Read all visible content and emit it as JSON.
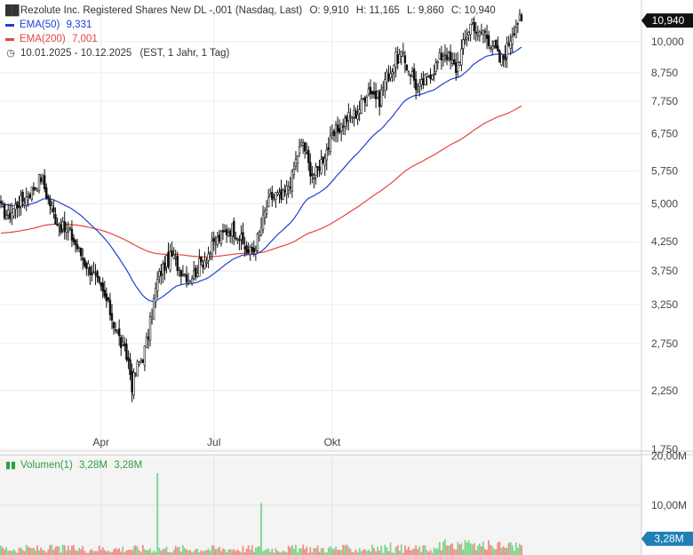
{
  "header": {
    "title": "Rezolute Inc. Registered Shares New DL -,001 (Nasdaq, Last)",
    "ohlc": {
      "o_label": "O:",
      "o": "9,910",
      "h_label": "H:",
      "h": "11,165",
      "l_label": "L:",
      "l": "9,860",
      "c_label": "C:",
      "c": "10,940"
    },
    "ema50": {
      "label": "EMA(50)",
      "value": "9,331",
      "color": "#1f3fd6"
    },
    "ema200": {
      "label": "EMA(200)",
      "value": "7,001",
      "color": "#e5453c"
    },
    "range": {
      "dates": "10.01.2025 - 10.12.2025",
      "info": "(EST, 1 Jahr, 1 Tag)"
    }
  },
  "volume_legend": {
    "label": "Volumen(1)",
    "v1": "3,28M",
    "v2": "3,28M"
  },
  "chart_data": {
    "type": "candlestick",
    "yscale": "log",
    "ylim": [
      1.75,
      11.5
    ],
    "ytick_labels": [
      "10,000",
      "8,750",
      "7,750",
      "6,750",
      "5,750",
      "5,000",
      "4,250",
      "3,750",
      "3,250",
      "2,750",
      "2,250",
      "1,750"
    ],
    "ytick_values": [
      10.0,
      8.75,
      7.75,
      6.75,
      5.75,
      5.0,
      4.25,
      3.75,
      3.25,
      2.75,
      2.25,
      1.75
    ],
    "xtick_labels": [
      "Apr",
      "Jul",
      "Okt"
    ],
    "last_price_label": "10,940",
    "last_price": 10.94,
    "price_anchors": [
      [
        0,
        4.9
      ],
      [
        4,
        4.75
      ],
      [
        9,
        5.0
      ],
      [
        13,
        5.1
      ],
      [
        17,
        5.3
      ],
      [
        22,
        5.6
      ],
      [
        26,
        5.1
      ],
      [
        30,
        4.7
      ],
      [
        34,
        4.5
      ],
      [
        38,
        4.4
      ],
      [
        42,
        4.15
      ],
      [
        46,
        3.9
      ],
      [
        50,
        3.75
      ],
      [
        54,
        3.5
      ],
      [
        58,
        3.3
      ],
      [
        62,
        3.0
      ],
      [
        66,
        2.75
      ],
      [
        70,
        2.55
      ],
      [
        72,
        2.3
      ],
      [
        75,
        2.5
      ],
      [
        78,
        2.6
      ],
      [
        81,
        2.85
      ],
      [
        84,
        3.3
      ],
      [
        86,
        3.6
      ],
      [
        88,
        3.75
      ],
      [
        91,
        3.9
      ],
      [
        94,
        4.0
      ],
      [
        97,
        3.85
      ],
      [
        100,
        3.75
      ],
      [
        103,
        3.65
      ],
      [
        106,
        3.7
      ],
      [
        109,
        3.85
      ],
      [
        112,
        3.95
      ],
      [
        115,
        4.1
      ],
      [
        118,
        4.25
      ],
      [
        121,
        4.35
      ],
      [
        124,
        4.45
      ],
      [
        127,
        4.5
      ],
      [
        130,
        4.4
      ],
      [
        133,
        4.2
      ],
      [
        136,
        4.05
      ],
      [
        139,
        4.1
      ],
      [
        142,
        4.4
      ],
      [
        145,
        4.8
      ],
      [
        148,
        5.1
      ],
      [
        151,
        5.2
      ],
      [
        154,
        5.1
      ],
      [
        157,
        5.3
      ],
      [
        160,
        5.6
      ],
      [
        163,
        6.2
      ],
      [
        166,
        6.5
      ],
      [
        169,
        5.9
      ],
      [
        172,
        5.6
      ],
      [
        175,
        5.9
      ],
      [
        178,
        6.2
      ],
      [
        181,
        6.5
      ],
      [
        184,
        6.8
      ],
      [
        187,
        7.0
      ],
      [
        190,
        7.2
      ],
      [
        193,
        7.3
      ],
      [
        196,
        7.4
      ],
      [
        199,
        7.8
      ],
      [
        202,
        8.2
      ],
      [
        205,
        8.0
      ],
      [
        208,
        7.8
      ],
      [
        211,
        8.5
      ],
      [
        214,
        8.8
      ],
      [
        217,
        9.3
      ],
      [
        220,
        9.4
      ],
      [
        223,
        9.0
      ],
      [
        226,
        8.7
      ],
      [
        229,
        8.1
      ],
      [
        232,
        8.4
      ],
      [
        235,
        8.7
      ],
      [
        238,
        8.9
      ],
      [
        241,
        9.3
      ],
      [
        244,
        9.6
      ],
      [
        247,
        9.2
      ],
      [
        250,
        8.9
      ],
      [
        253,
        9.6
      ],
      [
        256,
        10.3
      ],
      [
        259,
        11.0
      ],
      [
        262,
        10.2
      ],
      [
        265,
        10.5
      ],
      [
        268,
        10.1
      ],
      [
        271,
        9.8
      ],
      [
        274,
        9.2
      ],
      [
        277,
        9.5
      ],
      [
        280,
        10.2
      ],
      [
        282,
        10.6
      ],
      [
        284,
        10.94
      ]
    ],
    "volume": {
      "ytick_labels": [
        "20,00M",
        "10,00M"
      ],
      "ytick_values": [
        20,
        10
      ],
      "last_label": "3,28M",
      "spikes": [
        [
          86,
          16.5
        ],
        [
          143,
          10.5
        ],
        [
          214,
          2.5
        ],
        [
          244,
          3.2
        ]
      ]
    }
  }
}
